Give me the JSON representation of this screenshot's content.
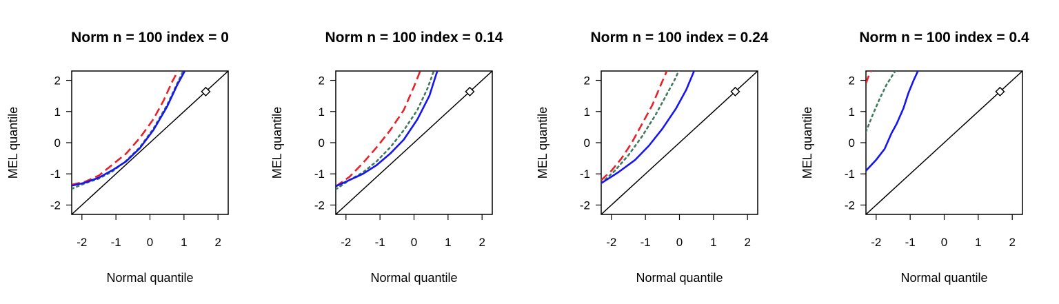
{
  "chart_data": [
    {
      "type": "line",
      "title": "Norm n = 100 index = 0",
      "xlabel": "Normal quantile",
      "ylabel": "MEL quantile",
      "xlim": [
        -2.3,
        2.3
      ],
      "ylim": [
        -2.3,
        2.3
      ],
      "xticks": [
        "-2",
        "-1",
        "0",
        "1",
        "2"
      ],
      "yticks": [
        "-2",
        "-1",
        "0",
        "1",
        "2"
      ],
      "reference_line": "y = x",
      "marker": {
        "shape": "diamond",
        "x": 1.64,
        "y": 1.64
      },
      "series": [
        {
          "color": "#e8202a",
          "style": "dashed",
          "x": [
            -2.3,
            -1.9,
            -1.5,
            -1.1,
            -0.7,
            -0.3,
            0.1,
            0.4,
            0.65,
            0.85
          ],
          "y": [
            -1.35,
            -1.25,
            -1.05,
            -0.7,
            -0.35,
            0.15,
            0.75,
            1.35,
            1.95,
            2.35
          ]
        },
        {
          "color": "#3f7a5c",
          "style": "dotted",
          "x": [
            -2.3,
            -1.9,
            -1.5,
            -1.1,
            -0.7,
            -0.3,
            0.1,
            0.5,
            0.8,
            1.0
          ],
          "y": [
            -1.48,
            -1.3,
            -1.15,
            -0.92,
            -0.58,
            -0.15,
            0.45,
            1.2,
            1.9,
            2.35
          ]
        },
        {
          "color": "#1515f0",
          "style": "solid",
          "x": [
            -2.3,
            -1.9,
            -1.5,
            -1.1,
            -0.7,
            -0.3,
            0.1,
            0.5,
            0.8,
            1.05
          ],
          "y": [
            -1.38,
            -1.28,
            -1.12,
            -0.88,
            -0.6,
            -0.18,
            0.4,
            1.15,
            1.85,
            2.35
          ]
        }
      ]
    },
    {
      "type": "line",
      "title": "Norm n = 100 index = 0.14",
      "xlabel": "Normal quantile",
      "ylabel": "MEL quantile",
      "xlim": [
        -2.3,
        2.3
      ],
      "ylim": [
        -2.3,
        2.3
      ],
      "xticks": [
        "-2",
        "-1",
        "0",
        "1",
        "2"
      ],
      "yticks": [
        "-2",
        "-1",
        "0",
        "1",
        "2"
      ],
      "reference_line": "y = x",
      "marker": {
        "shape": "diamond",
        "x": 1.64,
        "y": 1.64
      },
      "series": [
        {
          "color": "#e8202a",
          "style": "dashed",
          "x": [
            -2.3,
            -1.9,
            -1.5,
            -1.1,
            -0.7,
            -0.3,
            0.0,
            0.2
          ],
          "y": [
            -1.4,
            -1.1,
            -0.65,
            -0.15,
            0.4,
            1.05,
            1.8,
            2.35
          ]
        },
        {
          "color": "#3f7a5c",
          "style": "dotted",
          "x": [
            -2.3,
            -1.9,
            -1.5,
            -1.1,
            -0.7,
            -0.3,
            0.1,
            0.4,
            0.6
          ],
          "y": [
            -1.5,
            -1.2,
            -0.95,
            -0.6,
            -0.15,
            0.4,
            1.05,
            1.75,
            2.35
          ]
        },
        {
          "color": "#1515f0",
          "style": "solid",
          "x": [
            -2.3,
            -1.9,
            -1.5,
            -1.1,
            -0.7,
            -0.3,
            0.1,
            0.45,
            0.7
          ],
          "y": [
            -1.4,
            -1.2,
            -1.0,
            -0.72,
            -0.35,
            0.1,
            0.75,
            1.5,
            2.35
          ]
        }
      ]
    },
    {
      "type": "line",
      "title": "Norm n = 100 index = 0.24",
      "xlabel": "Normal quantile",
      "ylabel": "MEL quantile",
      "xlim": [
        -2.3,
        2.3
      ],
      "ylim": [
        -2.3,
        2.3
      ],
      "xticks": [
        "-2",
        "-1",
        "0",
        "1",
        "2"
      ],
      "yticks": [
        "-2",
        "-1",
        "0",
        "1",
        "2"
      ],
      "reference_line": "y = x",
      "marker": {
        "shape": "diamond",
        "x": 1.64,
        "y": 1.64
      },
      "series": [
        {
          "color": "#e8202a",
          "style": "dashed",
          "x": [
            -2.3,
            -2.0,
            -1.7,
            -1.4,
            -1.1,
            -0.8,
            -0.55,
            -0.35
          ],
          "y": [
            -1.2,
            -0.9,
            -0.5,
            0.0,
            0.6,
            1.2,
            1.85,
            2.35
          ]
        },
        {
          "color": "#3f7a5c",
          "style": "dotted",
          "x": [
            -2.3,
            -1.9,
            -1.5,
            -1.1,
            -0.7,
            -0.4,
            -0.15,
            0.0
          ],
          "y": [
            -1.3,
            -0.9,
            -0.4,
            0.2,
            0.9,
            1.5,
            2.0,
            2.35
          ]
        },
        {
          "color": "#1515f0",
          "style": "solid",
          "x": [
            -2.3,
            -1.8,
            -1.3,
            -0.9,
            -0.5,
            -0.1,
            0.2,
            0.45
          ],
          "y": [
            -1.3,
            -0.95,
            -0.55,
            -0.1,
            0.45,
            1.1,
            1.7,
            2.35
          ]
        }
      ]
    },
    {
      "type": "line",
      "title": "Norm n = 100 index = 0.4",
      "xlabel": "Normal quantile",
      "ylabel": "MEL quantile",
      "xlim": [
        -2.3,
        2.3
      ],
      "ylim": [
        -2.3,
        2.3
      ],
      "xticks": [
        "-2",
        "-1",
        "0",
        "1",
        "2"
      ],
      "yticks": [
        "-2",
        "-1",
        "0",
        "1",
        "2"
      ],
      "reference_line": "y = x",
      "marker": {
        "shape": "diamond",
        "x": 1.64,
        "y": 1.64
      },
      "series": [
        {
          "color": "#e8202a",
          "style": "dashed",
          "x": [
            -2.3,
            -2.2,
            -2.12
          ],
          "y": [
            1.9,
            2.2,
            2.35
          ]
        },
        {
          "color": "#3f7a5c",
          "style": "dotted",
          "x": [
            -2.3,
            -2.1,
            -1.9,
            -1.7,
            -1.5,
            -1.4
          ],
          "y": [
            0.35,
            0.9,
            1.4,
            1.85,
            2.2,
            2.35
          ]
        },
        {
          "color": "#1515f0",
          "style": "solid",
          "x": [
            -2.3,
            -2.0,
            -1.75,
            -1.55,
            -1.4,
            -1.2,
            -1.05,
            -0.9,
            -0.75
          ],
          "y": [
            -0.9,
            -0.55,
            -0.2,
            0.3,
            0.6,
            1.1,
            1.6,
            2.0,
            2.35
          ]
        }
      ]
    }
  ]
}
